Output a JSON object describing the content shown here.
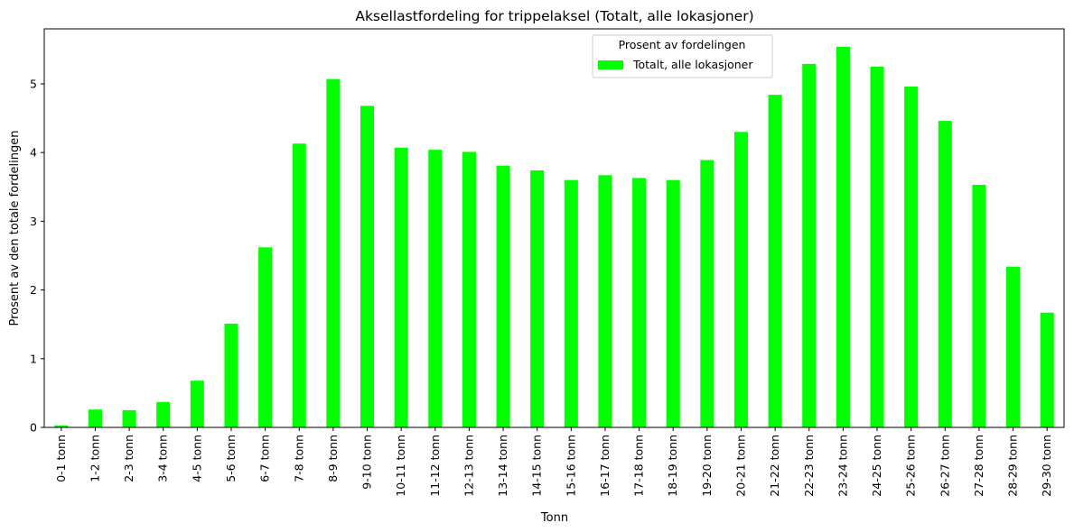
{
  "chart_data": {
    "type": "bar",
    "title": "Aksellastfordeling for trippelaksel (Totalt, alle lokasjoner)",
    "xlabel": "Tonn",
    "ylabel": "Prosent av den totale fordelingen",
    "ylim": [
      0,
      5.8
    ],
    "yticks": [
      0,
      1,
      2,
      3,
      4,
      5
    ],
    "grid": false,
    "legend": {
      "title": "Prosent av fordelingen",
      "placement": "top-center",
      "entries": [
        "Totalt, alle lokasjoner"
      ]
    },
    "bar_color": "#00ff00",
    "categories": [
      "0-1 tonn",
      "1-2 tonn",
      "2-3 tonn",
      "3-4 tonn",
      "4-5 tonn",
      "5-6 tonn",
      "6-7 tonn",
      "7-8 tonn",
      "8-9 tonn",
      "9-10 tonn",
      "10-11 tonn",
      "11-12 tonn",
      "12-13 tonn",
      "13-14 tonn",
      "14-15 tonn",
      "15-16 tonn",
      "16-17 tonn",
      "17-18 tonn",
      "18-19 tonn",
      "19-20 tonn",
      "20-21 tonn",
      "21-22 tonn",
      "22-23 tonn",
      "23-24 tonn",
      "24-25 tonn",
      "25-26 tonn",
      "26-27 tonn",
      "27-28 tonn",
      "28-29 tonn",
      "29-30 tonn"
    ],
    "series": [
      {
        "name": "Totalt, alle lokasjoner",
        "values": [
          0.03,
          0.26,
          0.25,
          0.37,
          0.68,
          1.51,
          2.62,
          4.13,
          5.07,
          4.68,
          4.07,
          4.04,
          4.01,
          3.81,
          3.74,
          3.6,
          3.67,
          3.63,
          3.6,
          3.89,
          4.3,
          4.84,
          5.29,
          5.54,
          5.25,
          4.96,
          4.46,
          3.53,
          2.34,
          1.67
        ]
      }
    ]
  }
}
